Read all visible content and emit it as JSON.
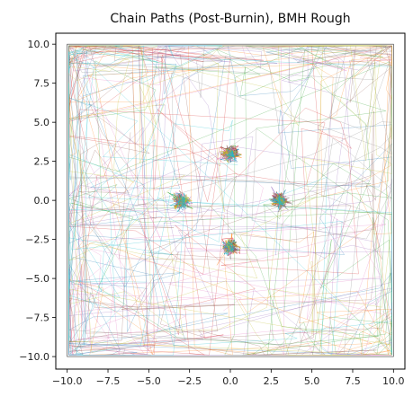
{
  "chart_data": {
    "type": "line",
    "title": "Chain Paths (Post-Burnin), BMH Rough",
    "xlabel": "",
    "ylabel": "",
    "xlim": [
      -10.7,
      10.7
    ],
    "ylim": [
      -10.8,
      10.7
    ],
    "grid": false,
    "legend": "none",
    "xticks": [
      -10.0,
      -7.5,
      -5.0,
      -2.5,
      0.0,
      2.5,
      5.0,
      7.5,
      10.0
    ],
    "yticks": [
      10.0,
      7.5,
      5.0,
      2.5,
      0.0,
      -2.5,
      -5.0,
      -7.5,
      -10.0
    ],
    "xtick_labels": [
      "−10.0",
      "−7.5",
      "−5.0",
      "−2.5",
      "0.0",
      "2.5",
      "5.0",
      "7.5",
      "10.0"
    ],
    "ytick_labels": [
      "10.0",
      "7.5",
      "5.0",
      "2.5",
      "0.0",
      "−2.5",
      "−5.0",
      "−7.5",
      "−10.0"
    ],
    "bounding_box": {
      "x": [
        -10,
        10
      ],
      "y": [
        -10,
        10
      ]
    },
    "modes": [
      {
        "x": 0,
        "y": 3
      },
      {
        "x": -3,
        "y": 0
      },
      {
        "x": 3,
        "y": 0
      },
      {
        "x": 0,
        "y": -3
      }
    ],
    "mode_spread": 0.45,
    "series_colors": [
      "#1f77b4",
      "#ff7f0e",
      "#2ca02c",
      "#d62728",
      "#9467bd",
      "#8c564b",
      "#e377c2",
      "#7f7f7f",
      "#bcbd22",
      "#17becf"
    ]
  }
}
